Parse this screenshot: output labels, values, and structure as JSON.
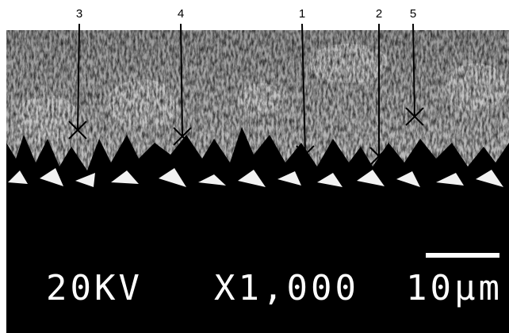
{
  "markers": [
    {
      "label": "3"
    },
    {
      "label": "4"
    },
    {
      "label": "1"
    },
    {
      "label": "2"
    },
    {
      "label": "5"
    }
  ],
  "footer": {
    "voltage": "20KV",
    "magnification": "X1,000",
    "scale": "10μm"
  }
}
